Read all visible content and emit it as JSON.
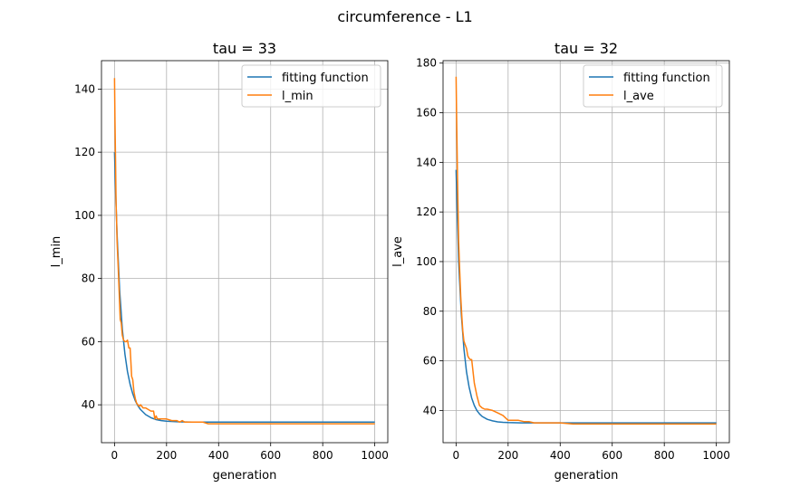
{
  "figure": {
    "suptitle": "circumference - L1"
  },
  "colors": {
    "fit": "#1f77b4",
    "data": "#ff7f0e",
    "grid": "#b0b0b0",
    "axis": "#000000"
  },
  "chart_data": [
    {
      "type": "line",
      "title": "tau = 33",
      "xlabel": "generation",
      "ylabel": "l_min",
      "xlim": [
        -50,
        1050
      ],
      "ylim": [
        28,
        149
      ],
      "xticks": [
        0,
        200,
        400,
        600,
        800,
        1000
      ],
      "yticks": [
        40,
        60,
        80,
        100,
        120,
        140
      ],
      "grid": true,
      "legend": "top-right",
      "series": [
        {
          "name": "fitting function",
          "x": [
            0,
            5,
            10,
            20,
            30,
            40,
            50,
            60,
            70,
            80,
            90,
            100,
            120,
            140,
            160,
            180,
            200,
            250,
            300,
            400,
            600,
            800,
            1000
          ],
          "y": [
            120,
            106,
            94,
            76,
            64,
            56,
            50.5,
            46.5,
            43.5,
            41.3,
            39.7,
            38.5,
            36.9,
            35.9,
            35.3,
            35,
            34.8,
            34.6,
            34.55,
            34.5,
            34.5,
            34.5,
            34.5
          ]
        },
        {
          "name": "l_min",
          "x": [
            0,
            2,
            4,
            6,
            8,
            10,
            14,
            18,
            22,
            26,
            30,
            35,
            40,
            45,
            50,
            55,
            60,
            62,
            66,
            70,
            75,
            80,
            85,
            90,
            95,
            100,
            110,
            120,
            130,
            140,
            150,
            155,
            160,
            165,
            170,
            180,
            200,
            220,
            240,
            250,
            260,
            270,
            280,
            300,
            320,
            340,
            360,
            400,
            450,
            500,
            600,
            700,
            800,
            900,
            1000
          ],
          "y": [
            143.5,
            130,
            118,
            104,
            98,
            92,
            84,
            76,
            67,
            66,
            62,
            60.5,
            60,
            60,
            60.5,
            58,
            58,
            55,
            49,
            48,
            44,
            42,
            40.5,
            40,
            39.5,
            40,
            39,
            39,
            38.5,
            38,
            38,
            35.5,
            36.5,
            35.5,
            35.5,
            35.5,
            35.5,
            35,
            35,
            34.5,
            35,
            34.5,
            34.5,
            34.5,
            34.5,
            34.5,
            34,
            34,
            34,
            34,
            34,
            34,
            34,
            34,
            34
          ]
        }
      ]
    },
    {
      "type": "line",
      "title": "tau = 32",
      "xlabel": "generation",
      "ylabel": "l_ave",
      "xlim": [
        -50,
        1050
      ],
      "ylim": [
        27,
        181
      ],
      "xticks": [
        0,
        200,
        400,
        600,
        800,
        1000
      ],
      "yticks": [
        40,
        60,
        80,
        100,
        120,
        140,
        160,
        180
      ],
      "grid": true,
      "legend": "top-right",
      "series": [
        {
          "name": "fitting function",
          "x": [
            0,
            5,
            10,
            20,
            30,
            40,
            50,
            60,
            70,
            80,
            90,
            100,
            120,
            140,
            160,
            180,
            200,
            250,
            300,
            400,
            600,
            800,
            1000
          ],
          "y": [
            137,
            117,
            100,
            79,
            65,
            55.5,
            49.5,
            45,
            42,
            40,
            38.6,
            37.6,
            36.4,
            35.8,
            35.4,
            35.2,
            35.1,
            35,
            35,
            35,
            35,
            35,
            35
          ]
        },
        {
          "name": "l_ave",
          "x": [
            0,
            2,
            4,
            6,
            8,
            10,
            14,
            18,
            22,
            26,
            30,
            35,
            40,
            45,
            50,
            55,
            60,
            70,
            80,
            90,
            100,
            110,
            120,
            140,
            160,
            180,
            190,
            200,
            220,
            240,
            260,
            280,
            300,
            350,
            400,
            450,
            500,
            600,
            700,
            800,
            900,
            1000
          ],
          "y": [
            174.5,
            160,
            145,
            130,
            118,
            108,
            96,
            86,
            78,
            72,
            68,
            66.5,
            65,
            62,
            61,
            60.5,
            60.5,
            51,
            46,
            42,
            41,
            40.5,
            40.5,
            40,
            39,
            38,
            37,
            36,
            36,
            36,
            35.5,
            35.5,
            35,
            35,
            35,
            34.5,
            34.5,
            34.5,
            34.5,
            34.5,
            34.5,
            34.5
          ]
        }
      ]
    }
  ]
}
